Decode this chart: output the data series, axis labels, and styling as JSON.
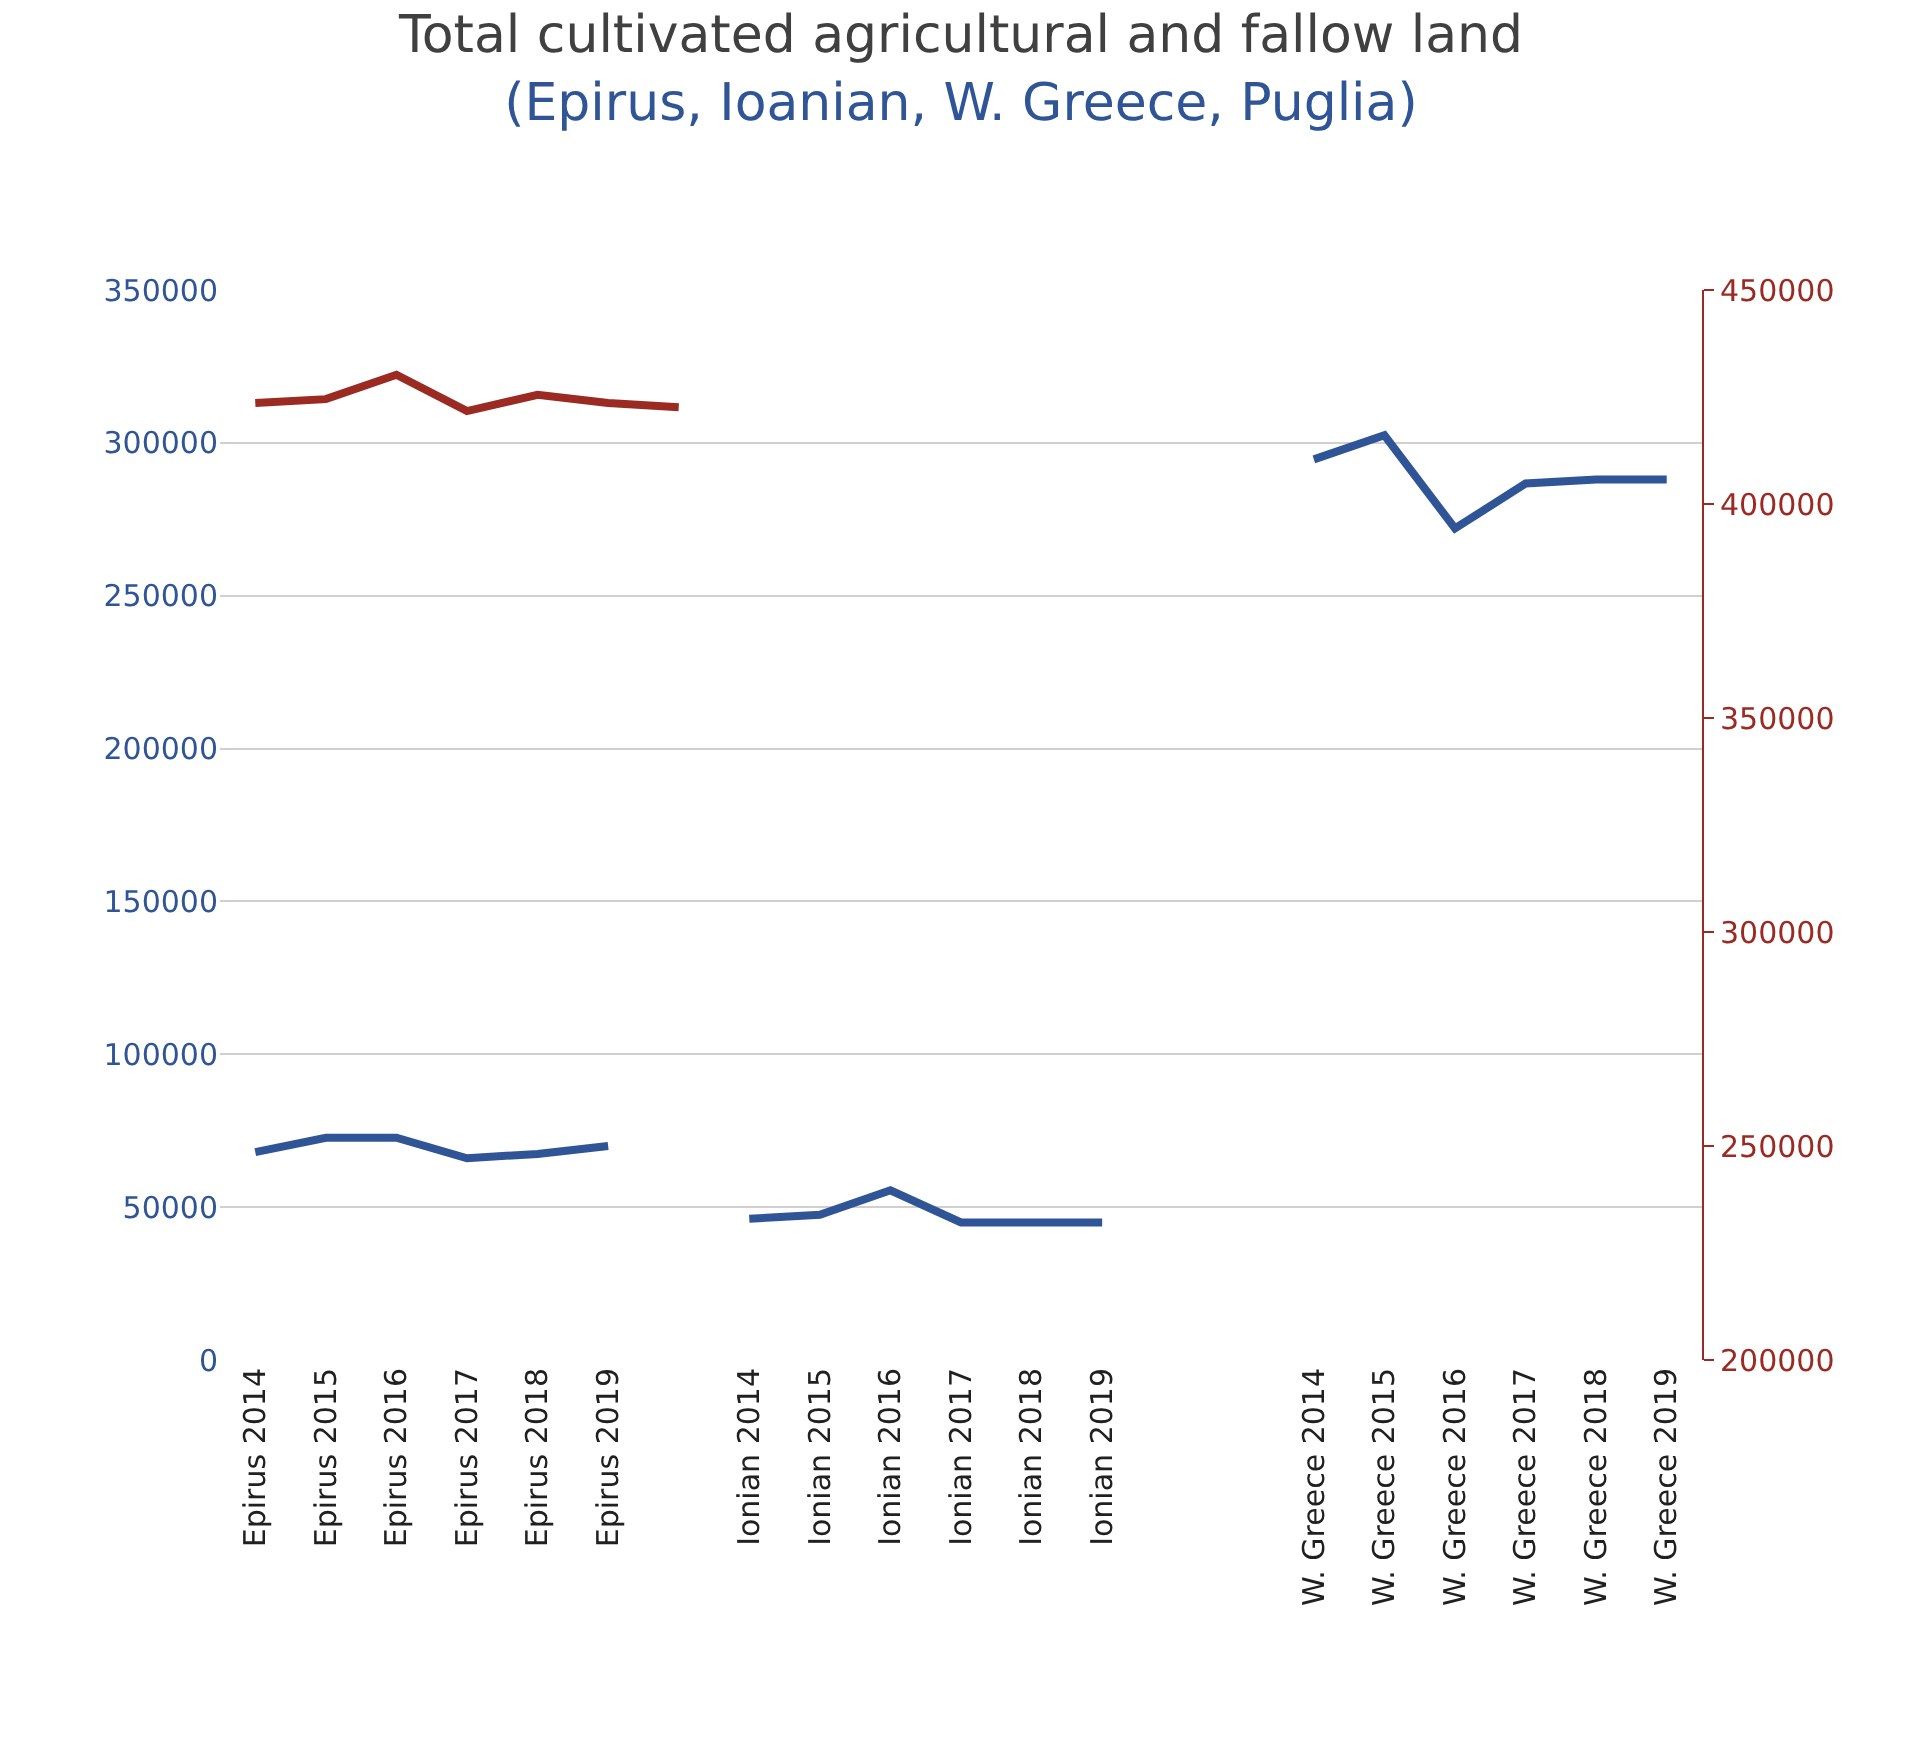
{
  "chart_data": {
    "type": "line",
    "title": "Total cultivated agricultural and fallow land",
    "subtitle": "(Epirus, Ioanian, W. Greece, Puglia)",
    "categories": [
      "Epirus 2014",
      "Epirus 2015",
      "Epirus 2016",
      "Epirus 2017",
      "Epirus 2018",
      "Epirus 2019",
      null,
      "Ionian 2014",
      "Ionian 2015",
      "Ionian 2016",
      "Ionian 2017",
      "Ionian 2018",
      "Ionian 2019",
      null,
      null,
      "W. Greece 2014",
      "W. Greece 2015",
      "W. Greece 2016",
      "W. Greece 2017",
      "W. Greece 2018",
      "W. Greece 2019"
    ],
    "series": [
      {
        "color": "#2f5597",
        "values": [
          68000,
          72700,
          72700,
          66000,
          67400,
          70000,
          null,
          46200,
          47500,
          55500,
          45000,
          45000,
          45000,
          null,
          null,
          294600,
          302500,
          272000,
          286700,
          288000,
          288000
        ]
      },
      {
        "color": "#9b2a22",
        "axis": "y2",
        "values": [
          423600,
          424500,
          430200,
          421700,
          425500,
          423600,
          422600,
          null,
          null,
          null,
          null,
          null,
          null,
          null,
          null,
          null,
          null,
          null,
          null,
          null,
          null
        ]
      }
    ],
    "ylim": [
      0,
      350000
    ],
    "yticks": [
      0,
      50000,
      100000,
      150000,
      200000,
      250000,
      300000,
      350000
    ],
    "y2lim": [
      200000,
      450000
    ],
    "y2ticks": [
      200000,
      250000,
      300000,
      350000,
      400000,
      450000
    ],
    "grid": "y",
    "marker": "none",
    "line_style": "solid"
  }
}
